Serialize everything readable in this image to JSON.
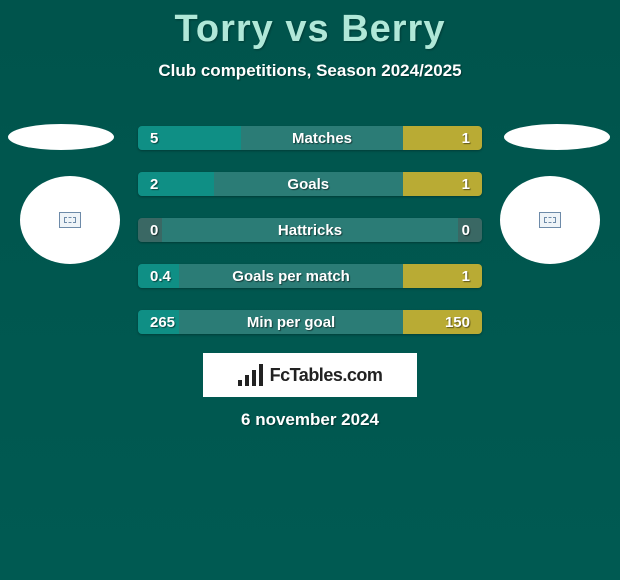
{
  "title": "Torry vs Berry",
  "subtitle": "Club competitions, Season 2024/2025",
  "date": "6 november 2024",
  "logo_text": "FcTables.com",
  "colors": {
    "left_bar": "#0f8f85",
    "mid_bar": "#2b7c76",
    "right_bar": "#b9ab34",
    "zero_bar": "#3a6864"
  },
  "rows": [
    {
      "label": "Matches",
      "left": "5",
      "right": "1",
      "left_pct": 30,
      "mid_pct": 47,
      "right_pct": 23
    },
    {
      "label": "Goals",
      "left": "2",
      "right": "1",
      "left_pct": 22,
      "mid_pct": 55,
      "right_pct": 23
    },
    {
      "label": "Hattricks",
      "left": "0",
      "right": "0",
      "left_pct": 7,
      "mid_pct": 86,
      "right_pct": 7,
      "zero": true
    },
    {
      "label": "Goals per match",
      "left": "0.4",
      "right": "1",
      "left_pct": 12,
      "mid_pct": 65,
      "right_pct": 23
    },
    {
      "label": "Min per goal",
      "left": "265",
      "right": "150",
      "left_pct": 12,
      "mid_pct": 65,
      "right_pct": 23
    }
  ]
}
